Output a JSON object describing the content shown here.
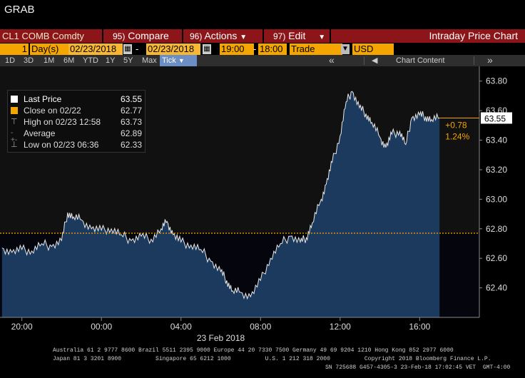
{
  "window": {
    "title": "GRAB"
  },
  "command_bar": {
    "ticker": "CL1 COMB Comdty",
    "compare": {
      "num": "95)",
      "label": "Compare"
    },
    "actions": {
      "num": "96)",
      "label": "Actions"
    },
    "edit": {
      "num": "97)",
      "label": "Edit"
    },
    "title": "Intraday Price Chart"
  },
  "params": {
    "period_count": "1",
    "period_unit": "Day(s)",
    "start_date": "02/23/2018",
    "end_date": "02/23/2018",
    "start_time": "19:00",
    "end_time": "18:00",
    "event": "Trade",
    "currency": "USD"
  },
  "toolbar": {
    "ranges": [
      "1D",
      "3D",
      "1M",
      "6M",
      "YTD",
      "1Y",
      "5Y",
      "Max"
    ],
    "tick_label": "Tick",
    "collapse": "«",
    "chart_content": "Chart Content"
  },
  "legend": {
    "last_price": {
      "label": "Last Price",
      "value": "63.55"
    },
    "close": {
      "label": "Close on 02/22",
      "value": "62.77"
    },
    "high": {
      "label": "High on 02/23 12:58",
      "value": "63.73"
    },
    "average": {
      "label": "Average",
      "value": "62.89"
    },
    "low": {
      "label": "Low on 02/23 06:36",
      "value": "62.33"
    }
  },
  "annotations": {
    "last_tag": "63.55",
    "change_abs": "+0.78",
    "change_pct": "1.24%"
  },
  "colors": {
    "accent_orange": "#f4a500",
    "command_red": "#8b1518",
    "area_fill": "#1c3a5e",
    "close_line": "#f4a500"
  },
  "footer": {
    "line1": "Australia 61 2 9777 8600 Brazil 5511 2395 9000 Europe 44 20 7330 7500 Germany 49 69 9204 1210 Hong Kong 852 2977 6000",
    "line2": "Japan 81 3 3201 8900          Singapore 65 6212 1000          U.S. 1 212 318 2000          Copyright 2018 Bloomberg Finance L.P.",
    "line3": "SN 725688 G457-4305-3 23-Feb-18 17:02:45 VET  GMT-4:00"
  },
  "chart_data": {
    "type": "area",
    "title": "Intraday Price Chart",
    "xlabel": "23 Feb 2018",
    "x_ticks": [
      "20:00",
      "00:00",
      "04:00",
      "08:00",
      "12:00",
      "16:00"
    ],
    "y_ticks": [
      62.4,
      62.6,
      62.8,
      63.0,
      63.2,
      63.4,
      63.6,
      63.8
    ],
    "ylim": [
      62.2,
      63.9
    ],
    "reference_line": {
      "name": "Close on 02/22",
      "value": 62.77
    },
    "series": [
      {
        "name": "Last Price",
        "hours": [
          19.0,
          19.5,
          20.0,
          20.5,
          21.0,
          21.5,
          22.0,
          22.3,
          22.6,
          23.0,
          23.5,
          0.0,
          0.5,
          1.0,
          1.5,
          2.0,
          2.5,
          3.0,
          3.3,
          3.6,
          4.0,
          4.5,
          5.0,
          5.5,
          6.0,
          6.3,
          6.6,
          7.0,
          7.5,
          8.0,
          8.5,
          9.0,
          9.5,
          10.0,
          10.3,
          10.6,
          11.0,
          11.3,
          11.6,
          12.0,
          12.3,
          12.6,
          12.97,
          13.3,
          13.6,
          14.0,
          14.3,
          14.6,
          15.0,
          15.3,
          15.6,
          16.0,
          16.3,
          16.6,
          17.0
        ],
        "values": [
          62.67,
          62.64,
          62.66,
          62.65,
          62.7,
          62.68,
          62.72,
          62.91,
          62.88,
          62.86,
          62.8,
          62.79,
          62.8,
          62.76,
          62.72,
          62.75,
          62.73,
          62.8,
          62.85,
          62.76,
          62.71,
          62.69,
          62.66,
          62.58,
          62.51,
          62.45,
          62.38,
          62.37,
          62.34,
          62.45,
          62.6,
          62.7,
          62.75,
          62.71,
          62.74,
          62.84,
          62.98,
          63.1,
          63.25,
          63.43,
          63.66,
          63.73,
          63.62,
          63.58,
          63.52,
          63.42,
          63.35,
          63.44,
          63.46,
          63.37,
          63.55,
          63.57,
          63.56,
          63.54,
          63.55
        ]
      }
    ],
    "grid": false,
    "legend_position": "top-left"
  }
}
